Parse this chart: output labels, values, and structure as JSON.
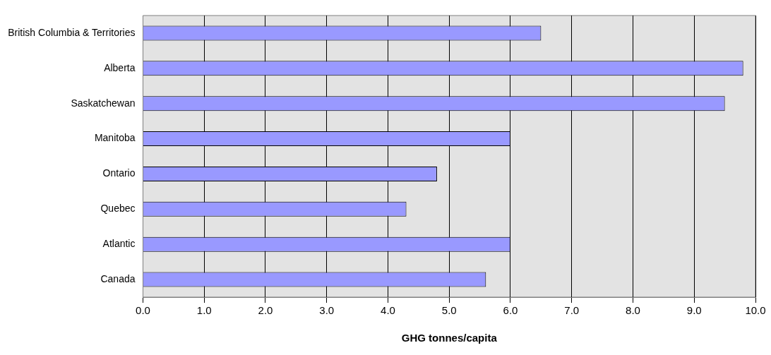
{
  "chart_data": {
    "type": "bar",
    "orientation": "horizontal",
    "xlabel": "GHG tonnes/capita",
    "categories": [
      "British Columbia & Territories",
      "Alberta",
      "Saskatchewan",
      "Manitoba",
      "Ontario",
      "Quebec",
      "Atlantic",
      "Canada"
    ],
    "values": [
      6.5,
      9.8,
      9.5,
      6.0,
      4.8,
      4.3,
      6.0,
      5.6
    ],
    "color": "#9999ff",
    "xlim": [
      0,
      10
    ],
    "xticks": [
      {
        "value": 0,
        "label": "0.0"
      },
      {
        "value": 1,
        "label": "1.0"
      },
      {
        "value": 2,
        "label": "2.0"
      },
      {
        "value": 3,
        "label": "3.0"
      },
      {
        "value": 4,
        "label": "4.0"
      },
      {
        "value": 5,
        "label": "5.0"
      },
      {
        "value": 6,
        "label": "6.0"
      },
      {
        "value": 7,
        "label": "7.0"
      },
      {
        "value": 8,
        "label": "8.0"
      },
      {
        "value": 9,
        "label": "9.0"
      },
      {
        "value": 10,
        "label": "10.0"
      }
    ],
    "grid": "x"
  }
}
